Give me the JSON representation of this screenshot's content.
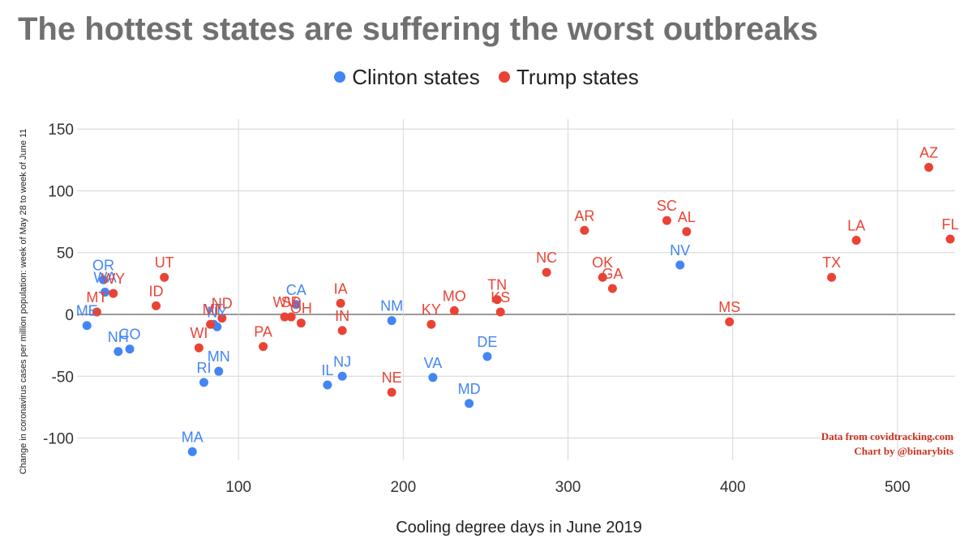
{
  "chart_data": {
    "type": "scatter",
    "title": "The hottest states are suffering the worst outbreaks",
    "xlabel": "Cooling degree days in June 2019",
    "ylabel": "Change in coronavirus cases per million population: week of May 28 to week of June 11",
    "xlim": [
      2,
      535
    ],
    "ylim": [
      -118,
      158
    ],
    "x_ticks": [
      100,
      200,
      300,
      400,
      500
    ],
    "y_ticks": [
      150,
      100,
      50,
      0,
      -50,
      -100
    ],
    "grid": true,
    "legend_position": "top",
    "series": [
      {
        "name": "Clinton states",
        "color": "#4285f4",
        "points": [
          {
            "label": "ME",
            "x": 8,
            "y": -9
          },
          {
            "label": "OR",
            "x": 18,
            "y": 28
          },
          {
            "label": "WA",
            "x": 19,
            "y": 18
          },
          {
            "label": "NH",
            "x": 27,
            "y": -30
          },
          {
            "label": "CO",
            "x": 34,
            "y": -28
          },
          {
            "label": "VT",
            "x": 85,
            "y": -8
          },
          {
            "label": "NY",
            "x": 87,
            "y": -10
          },
          {
            "label": "RI",
            "x": 79,
            "y": -55
          },
          {
            "label": "MN",
            "x": 88,
            "y": -46
          },
          {
            "label": "MA",
            "x": 72,
            "y": -111
          },
          {
            "label": "CA",
            "x": 135,
            "y": 8
          },
          {
            "label": "IL",
            "x": 154,
            "y": -57
          },
          {
            "label": "NJ",
            "x": 163,
            "y": -50
          },
          {
            "label": "NM",
            "x": 193,
            "y": -5
          },
          {
            "label": "VA",
            "x": 218,
            "y": -51
          },
          {
            "label": "MD",
            "x": 240,
            "y": -72
          },
          {
            "label": "DE",
            "x": 251,
            "y": -34
          },
          {
            "label": "NV",
            "x": 368,
            "y": 40
          }
        ]
      },
      {
        "name": "Trump states",
        "color": "#ea4335",
        "points": [
          {
            "label": "MT",
            "x": 14,
            "y": 2
          },
          {
            "label": "WY",
            "x": 24,
            "y": 17
          },
          {
            "label": "ID",
            "x": 50,
            "y": 7
          },
          {
            "label": "UT",
            "x": 55,
            "y": 30
          },
          {
            "label": "WI",
            "x": 76,
            "y": -27
          },
          {
            "label": "MI",
            "x": 83,
            "y": -8
          },
          {
            "label": "ND",
            "x": 90,
            "y": -3
          },
          {
            "label": "PA",
            "x": 115,
            "y": -26
          },
          {
            "label": "WV",
            "x": 128,
            "y": -2
          },
          {
            "label": "SD",
            "x": 132,
            "y": -2
          },
          {
            "label": "OH",
            "x": 138,
            "y": -7
          },
          {
            "label": "IA",
            "x": 162,
            "y": 9
          },
          {
            "label": "IN",
            "x": 163,
            "y": -13
          },
          {
            "label": "NE",
            "x": 193,
            "y": -63
          },
          {
            "label": "KY",
            "x": 217,
            "y": -8
          },
          {
            "label": "MO",
            "x": 231,
            "y": 3
          },
          {
            "label": "TN",
            "x": 257,
            "y": 12
          },
          {
            "label": "KS",
            "x": 259,
            "y": 2
          },
          {
            "label": "NC",
            "x": 287,
            "y": 34
          },
          {
            "label": "AR",
            "x": 310,
            "y": 68
          },
          {
            "label": "OK",
            "x": 321,
            "y": 30
          },
          {
            "label": "GA",
            "x": 327,
            "y": 21
          },
          {
            "label": "SC",
            "x": 360,
            "y": 76
          },
          {
            "label": "AL",
            "x": 372,
            "y": 67
          },
          {
            "label": "MS",
            "x": 398,
            "y": -6
          },
          {
            "label": "TX",
            "x": 460,
            "y": 30
          },
          {
            "label": "LA",
            "x": 475,
            "y": 60
          },
          {
            "label": "AZ",
            "x": 519,
            "y": 119
          },
          {
            "label": "FL",
            "x": 532,
            "y": 61
          }
        ]
      }
    ]
  },
  "credits": {
    "source": "Data from covidtracking.com",
    "author": "Chart by @binarybits"
  }
}
